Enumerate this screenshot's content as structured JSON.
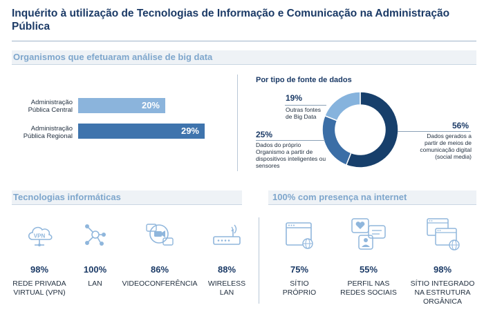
{
  "title": "Inquérito à utilização de Tecnologias de Informação e Comunicação na Administração Pública",
  "big_data": {
    "heading": "Organismos que efetuaram análise de big data",
    "bars": [
      {
        "label_line1": "Administração",
        "label_line2": "Pública Central",
        "value": "20%",
        "pct": 20
      },
      {
        "label_line1": "Administração",
        "label_line2": "Pública Regional",
        "value": "29%",
        "pct": 29
      }
    ],
    "colors": {
      "central": "#8bb4dc",
      "regional": "#3f74ad"
    }
  },
  "donut": {
    "title": "Por tipo de fonte de dados",
    "segments": [
      {
        "pct": "56%",
        "value": 56,
        "label_lines": [
          "Dados gerados a",
          "partir de meios de",
          "comunicação digital",
          "(social media)"
        ],
        "color": "#173f6b"
      },
      {
        "pct": "25%",
        "value": 25,
        "label_lines": [
          "Dados do próprio",
          "Organismo a partir de",
          "dispositivos inteligentes ou",
          "sensores"
        ],
        "color": "#3b6ea6"
      },
      {
        "pct": "19%",
        "value": 19,
        "label_lines": [
          "Outras fontes",
          "de Big Data"
        ],
        "color": "#86b3dd"
      }
    ]
  },
  "tech": {
    "heading": "Tecnologias informáticas",
    "items": [
      {
        "icon": "vpn-icon",
        "value": "98%",
        "caption_lines": [
          "REDE PRIVADA",
          "VIRTUAL (VPN)"
        ]
      },
      {
        "icon": "lan-icon",
        "value": "100%",
        "caption_lines": [
          "LAN"
        ]
      },
      {
        "icon": "videoconference-icon",
        "value": "86%",
        "caption_lines": [
          "VIDEOCONFERÊNCIA"
        ]
      },
      {
        "icon": "router-icon",
        "value": "88%",
        "caption_lines": [
          "WIRELESS",
          "LAN"
        ]
      }
    ]
  },
  "internet": {
    "heading": "100% com presença na internet",
    "items": [
      {
        "icon": "website-icon",
        "value": "75%",
        "caption_lines": [
          "SÍTIO",
          "PRÓPRIO"
        ]
      },
      {
        "icon": "social-media-icon",
        "value": "55%",
        "caption_lines": [
          "PERFIL NAS",
          "REDES SOCIAIS"
        ]
      },
      {
        "icon": "integrated-site-icon",
        "value": "98%",
        "caption_lines": [
          "SÍTIO INTEGRADO",
          "NA ESTRUTURA",
          "ORGÂNICA"
        ]
      }
    ]
  },
  "icon_color": "#8fb6dc"
}
